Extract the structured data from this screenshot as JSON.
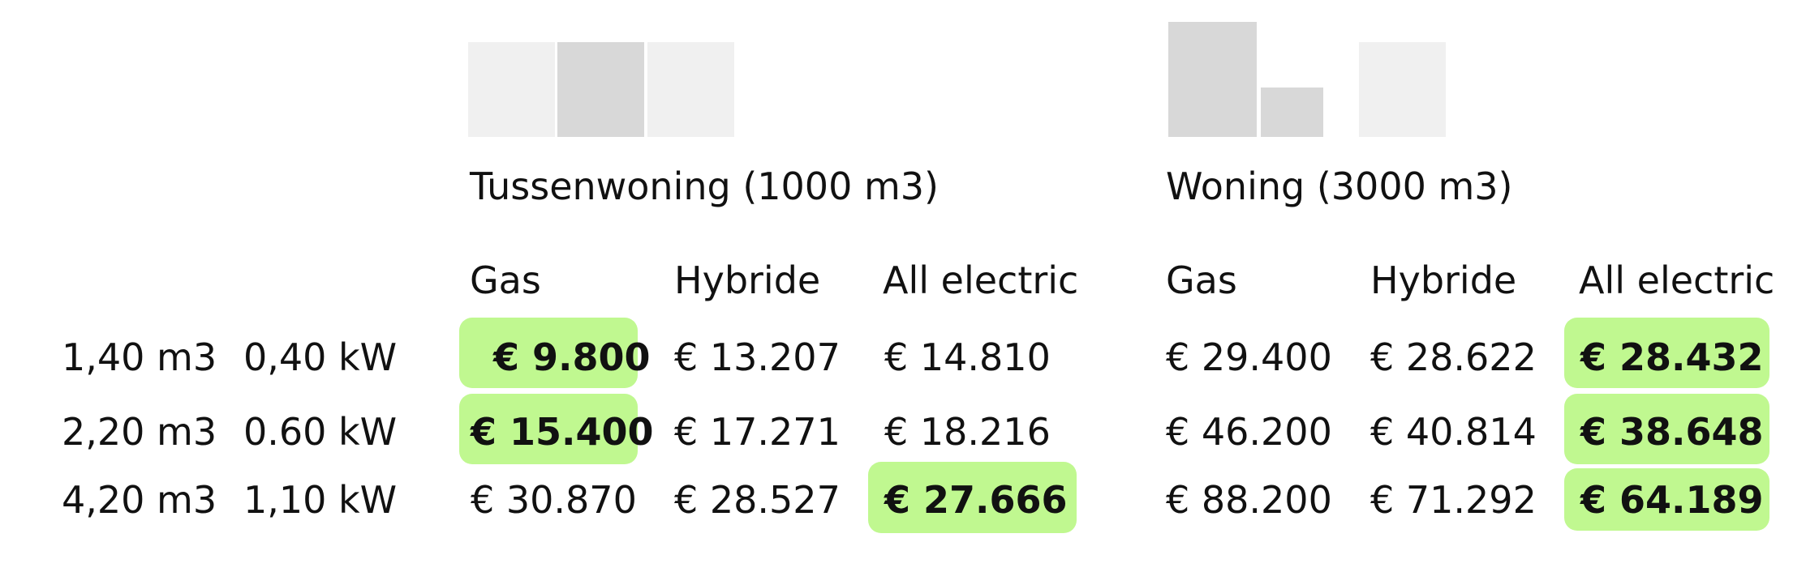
{
  "groups": [
    {
      "title": "Tussenwoning (1000 m3)",
      "columns": [
        "Gas",
        "Hybride",
        "All electric"
      ]
    },
    {
      "title": "Woning (3000 m3)",
      "columns": [
        "Gas",
        "Hybride",
        "All electric"
      ]
    }
  ],
  "rows": [
    {
      "gas_usage": "1,40 m3",
      "power": "0,40 kW",
      "values": [
        "€ 9.800",
        "€ 13.207",
        "€ 14.810",
        "€ 29.400",
        "€ 28.622",
        "€ 28.432"
      ],
      "highlight": [
        0,
        5
      ]
    },
    {
      "gas_usage": "2,20 m3",
      "power": "0.60 kW",
      "values": [
        "€ 15.400",
        "€ 17.271",
        "€ 18.216",
        "€ 46.200",
        "€ 40.814",
        "€ 38.648"
      ],
      "highlight": [
        0,
        5
      ]
    },
    {
      "gas_usage": "4,20 m3",
      "power": "1,10 kW",
      "values": [
        "€ 30.870",
        "€ 28.527",
        "€ 27.666",
        "€ 88.200",
        "€ 71.292",
        "€ 64.189"
      ],
      "highlight": [
        2,
        5
      ]
    }
  ],
  "colors": {
    "highlight": "#c0f890",
    "block_light": "#f0f0f0",
    "block_dark": "#d8d8d8"
  }
}
